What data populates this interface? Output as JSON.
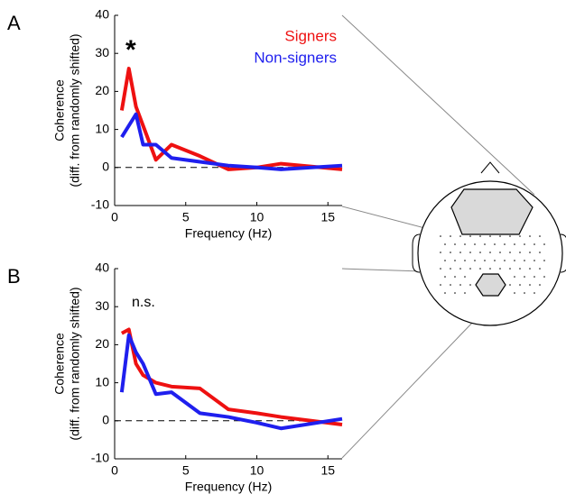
{
  "chart_data": [
    {
      "type": "line",
      "panel": "A",
      "annotation": "*",
      "xlabel": "Frequency (Hz)",
      "ylabel": [
        "Coherence",
        "(diff. from randomly shifted)"
      ],
      "x": [
        0.5,
        1,
        1.5,
        2,
        2.9,
        4,
        6,
        8,
        10,
        11.7,
        16
      ],
      "series": [
        {
          "name": "Signers",
          "color": "#ee1111",
          "values": [
            15,
            26,
            16,
            11,
            2,
            6,
            3,
            -0.5,
            0,
            1,
            -0.5
          ]
        },
        {
          "name": "Non-signers",
          "color": "#1f1fee",
          "values": [
            8,
            11,
            14,
            6,
            6,
            2.5,
            1.5,
            0.5,
            0,
            -0.5,
            0.5
          ]
        }
      ],
      "xlim": [
        0,
        16
      ],
      "xticks": [
        0,
        5,
        10,
        15
      ],
      "ylim": [
        -10,
        40
      ],
      "yticks": [
        -10,
        0,
        10,
        20,
        30,
        40
      ],
      "hline": 0,
      "legend": "upper right"
    },
    {
      "type": "line",
      "panel": "B",
      "annotation": "n.s.",
      "xlabel": "Frequency (Hz)",
      "ylabel": [
        "Coherence",
        "(diff. from randomly shifted)"
      ],
      "x": [
        0.5,
        1,
        1.5,
        2,
        2.9,
        4,
        6,
        8,
        10,
        11.7,
        16
      ],
      "series": [
        {
          "name": "Signers",
          "color": "#ee1111",
          "values": [
            23,
            24,
            15,
            12,
            10,
            9,
            8.5,
            3,
            2,
            1,
            -1
          ]
        },
        {
          "name": "Non-signers",
          "color": "#1f1fee",
          "values": [
            7.5,
            22.5,
            18,
            15,
            7,
            7.5,
            2,
            1,
            -0.5,
            -2,
            0.5
          ]
        }
      ],
      "xlim": [
        0,
        16
      ],
      "xticks": [
        0,
        5,
        10,
        15
      ],
      "ylim": [
        -10,
        40
      ],
      "yticks": [
        -10,
        0,
        10,
        20,
        30,
        40
      ],
      "hline": 0,
      "legend": "none"
    }
  ]
}
